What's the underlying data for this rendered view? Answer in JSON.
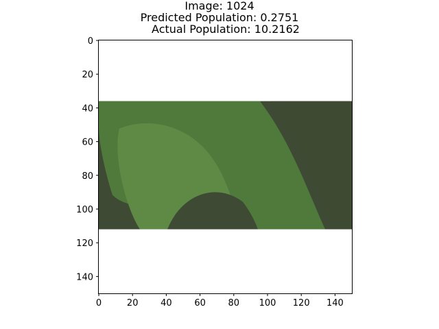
{
  "figure": {
    "title_lines": [
      "Image: 1024",
      "Predicted Population: 0.2751",
      "Actual Population: 10.2162"
    ],
    "image_id": "1024",
    "predicted_population": 0.2751,
    "actual_population": 10.2162
  },
  "chart_data": {
    "type": "heatmap",
    "title": "Image: 1024\nPredicted Population: 0.2751\nActual Population: 10.2162",
    "xlabel": "",
    "ylabel": "",
    "xlim": [
      0,
      150
    ],
    "ylim": [
      150,
      0
    ],
    "x_ticks": [
      0,
      20,
      40,
      60,
      80,
      100,
      120,
      140
    ],
    "y_ticks": [
      0,
      20,
      40,
      60,
      80,
      100,
      120,
      140
    ],
    "image_extent_rows": [
      36,
      112
    ],
    "grid": false,
    "colors": {
      "vegetation_light": "#5f8a45",
      "vegetation_mid": "#4f7a3c",
      "shadow_dark": "#3e4a33",
      "background": "#ffffff"
    }
  }
}
